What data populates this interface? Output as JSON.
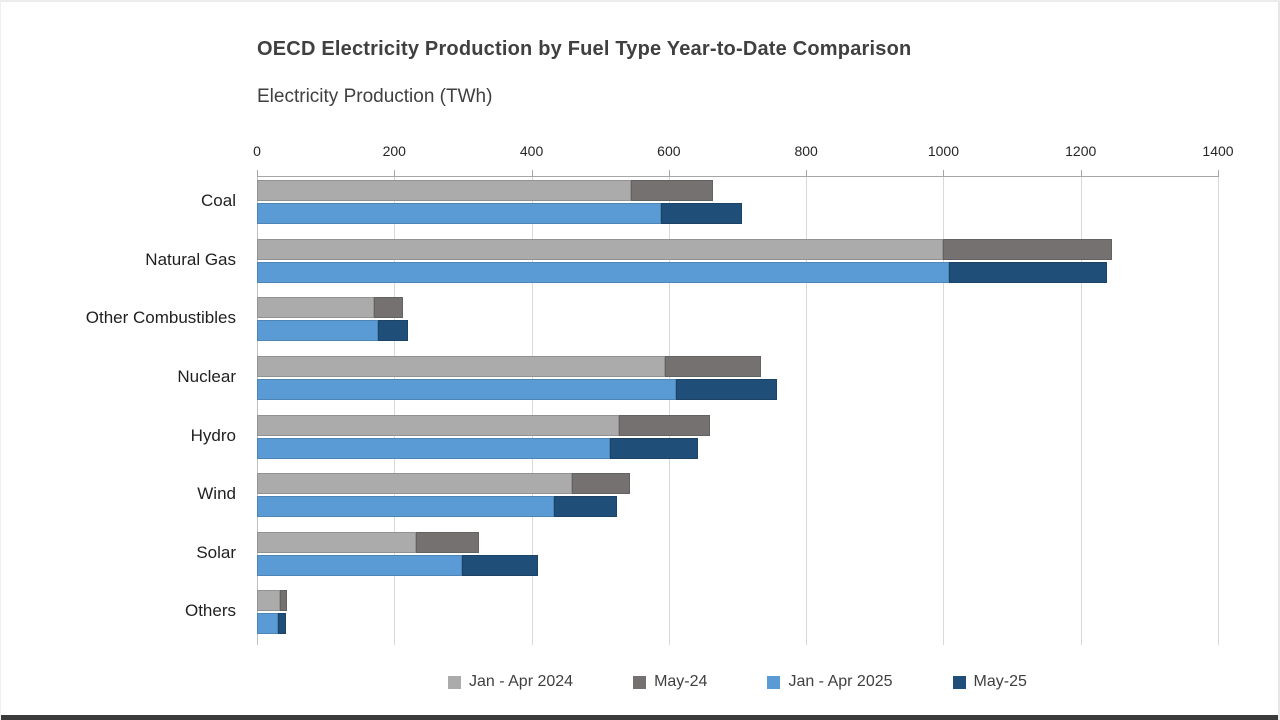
{
  "chart_data": {
    "type": "bar",
    "orientation": "horizontal",
    "stacked": true,
    "title": "OECD Electricity Production by Fuel Type Year-to-Date Comparison",
    "subtitle": "Electricity Production (TWh)",
    "unit": "TWh",
    "grid": true,
    "categories": [
      "Coal",
      "Natural Gas",
      "Other Combustibles",
      "Nuclear",
      "Hydro",
      "Wind",
      "Solar",
      "Others"
    ],
    "x_axis": {
      "min": 0,
      "max": 1400,
      "tick_step": 200,
      "ticks": [
        0,
        200,
        400,
        600,
        800,
        1000,
        1200,
        1400
      ],
      "position": "top"
    },
    "series": [
      {
        "name": "Jan - Apr 2024",
        "color": "#ABABAB",
        "bar": 0,
        "values": [
          545,
          1000,
          170,
          594,
          527,
          459,
          231,
          34
        ]
      },
      {
        "name": "May-24",
        "color": "#757171",
        "bar": 0,
        "values": [
          120,
          245,
          42,
          140,
          133,
          84,
          92,
          10
        ]
      },
      {
        "name": "Jan - Apr 2025",
        "color": "#5B9BD5",
        "bar": 1,
        "values": [
          588,
          1008,
          176,
          611,
          514,
          432,
          298,
          31
        ]
      },
      {
        "name": "May-25",
        "color": "#1F4E79",
        "bar": 1,
        "values": [
          118,
          230,
          44,
          146,
          128,
          92,
          111,
          11
        ]
      }
    ],
    "legend": {
      "position": "bottom",
      "entries": [
        "Jan - Apr 2024",
        "May-24",
        "Jan - Apr 2025",
        "May-25"
      ]
    },
    "colors": {
      "gridline": "#D9D9D9",
      "axis_line": "#A6A6A6",
      "title_text": "#404040",
      "label_text": "#262626"
    }
  }
}
